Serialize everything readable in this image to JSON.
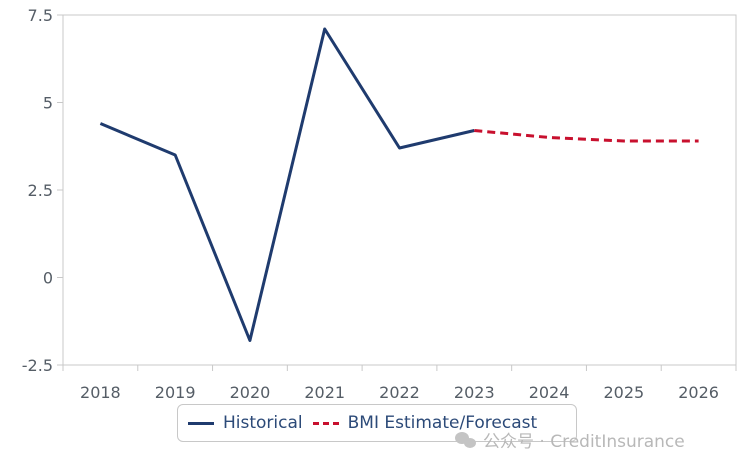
{
  "chart_data": {
    "type": "line",
    "categories": [
      "2018",
      "2019",
      "2020",
      "2021",
      "2022",
      "2023",
      "2024",
      "2025",
      "2026"
    ],
    "ylim": [
      -2.5,
      7.5
    ],
    "yticks": [
      -2.5,
      0,
      2.5,
      5,
      7.5
    ],
    "ytick_labels": [
      "-2.5",
      "0",
      "2.5",
      "5",
      "7.5"
    ],
    "series": [
      {
        "name": "Historical",
        "color": "#1f3b6e",
        "style": "solid",
        "x": [
          "2018",
          "2019",
          "2020",
          "2021",
          "2022",
          "2023"
        ],
        "values": [
          4.4,
          3.5,
          -1.8,
          7.1,
          3.7,
          4.2
        ]
      },
      {
        "name": "BMI Estimate/Forecast",
        "color": "#c8102e",
        "style": "dashed",
        "x": [
          "2023",
          "2024",
          "2025",
          "2026"
        ],
        "values": [
          4.2,
          4.0,
          3.9,
          3.9
        ]
      }
    ],
    "legend_position": "bottom-center",
    "grid": false
  },
  "watermark": {
    "text": "公众号 · CreditInsurance",
    "icon": "wechat-icon"
  }
}
